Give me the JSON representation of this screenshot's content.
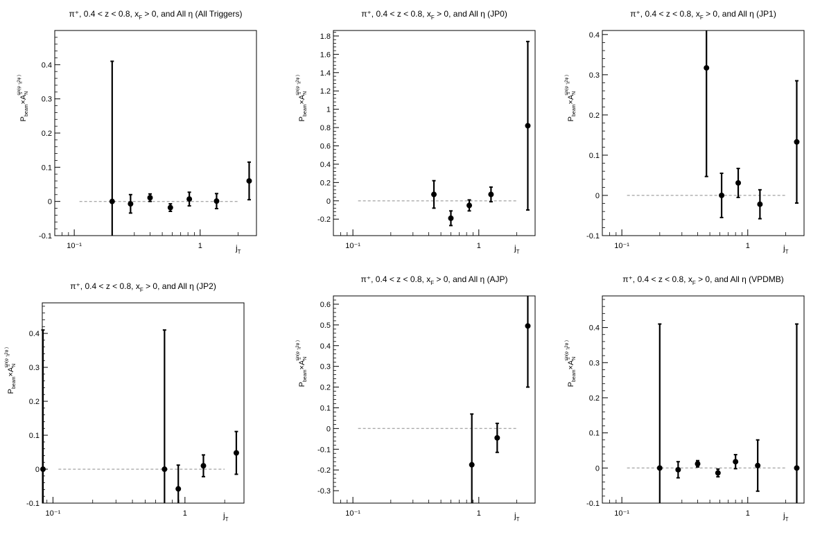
{
  "chart_data": [
    {
      "type": "scatter",
      "title": "π⁺, 0.4 < z < 0.8, x_F > 0, and All η (All Triggers)",
      "xlabel": "j_T",
      "ylabel": "P_beam × A_N^{sin(φ_S − 2φ_h)}",
      "xscale": "log",
      "xlim": [
        0.07,
        2.8
      ],
      "ylim": [
        -0.1,
        0.5
      ],
      "yticks": [
        -0.1,
        0,
        0.1,
        0.2,
        0.3,
        0.4
      ],
      "yticklabels": [
        "-0.1",
        "0",
        "0.1",
        "0.2",
        "0.3",
        "0.4"
      ],
      "xticks": [
        0.1,
        1
      ],
      "xticklabels": [
        "10⁻¹",
        "1"
      ],
      "reference_line": 0,
      "series": [
        {
          "x": [
            0.2,
            0.28,
            0.4,
            0.58,
            0.82,
            1.35,
            2.45
          ],
          "y": [
            0.0,
            -0.007,
            0.011,
            -0.018,
            0.007,
            0.001,
            0.06
          ],
          "yerr": [
            0.41,
            0.027,
            0.011,
            0.011,
            0.02,
            0.022,
            0.055
          ]
        }
      ]
    },
    {
      "type": "scatter",
      "title": "π⁺, 0.4 < z < 0.8, x_F > 0, and All η (JP0)",
      "xlabel": "j_T",
      "ylabel": "P_beam × A_N^{sin(φ_S − 2φ_h)}",
      "xscale": "log",
      "xlim": [
        0.07,
        2.8
      ],
      "ylim": [
        -0.38,
        1.86
      ],
      "yticks": [
        -0.2,
        0,
        0.2,
        0.4,
        0.6,
        0.8,
        1,
        1.2,
        1.4,
        1.6,
        1.8
      ],
      "yticklabels": [
        "-0.2",
        "0",
        "0.2",
        "0.4",
        "0.6",
        "0.8",
        "1",
        "1.2",
        "1.4",
        "1.6",
        "1.8"
      ],
      "xticks": [
        0.1,
        1
      ],
      "xticklabels": [
        "10⁻¹",
        "1"
      ],
      "reference_line": 0,
      "series": [
        {
          "x": [
            0.44,
            0.6,
            0.84,
            1.25,
            2.45
          ],
          "y": [
            0.07,
            -0.19,
            -0.05,
            0.07,
            0.82
          ],
          "yerr": [
            0.15,
            0.08,
            0.06,
            0.08,
            0.92
          ]
        }
      ]
    },
    {
      "type": "scatter",
      "title": "π⁺, 0.4 < z < 0.8, x_F > 0, and All η (JP1)",
      "xlabel": "j_T",
      "ylabel": "P_beam × A_N^{sin(φ_S − 2φ_h)}",
      "xscale": "log",
      "xlim": [
        0.07,
        2.8
      ],
      "ylim": [
        -0.1,
        0.41
      ],
      "yticks": [
        -0.1,
        0,
        0.1,
        0.2,
        0.3,
        0.4
      ],
      "yticklabels": [
        "-0.1",
        "0",
        "0.1",
        "0.2",
        "0.3",
        "0.4"
      ],
      "xticks": [
        0.1,
        1
      ],
      "xticklabels": [
        "10⁻¹",
        "1"
      ],
      "reference_line": 0,
      "series": [
        {
          "x": [
            0.47,
            0.62,
            0.84,
            1.25,
            2.45
          ],
          "y": [
            0.317,
            0.0,
            0.031,
            -0.022,
            0.133
          ],
          "yerr": [
            0.27,
            0.055,
            0.036,
            0.036,
            0.152
          ]
        }
      ]
    },
    {
      "type": "scatter",
      "title": "π⁺, 0.4 < z < 0.8, x_F > 0, and All η (JP2)",
      "xlabel": "j_T",
      "ylabel": "P_beam × A_N^{sin(φ_S − 2φ_h)}",
      "xscale": "log",
      "xlim": [
        0.083,
        2.8
      ],
      "ylim": [
        -0.1,
        0.49
      ],
      "yticks": [
        -0.1,
        0,
        0.1,
        0.2,
        0.3,
        0.4
      ],
      "yticklabels": [
        "-0.1",
        "0",
        "0.1",
        "0.2",
        "0.3",
        "0.4"
      ],
      "xticks": [
        0.1,
        1
      ],
      "xticklabels": [
        "10⁻¹",
        "1"
      ],
      "reference_line": 0,
      "series": [
        {
          "x": [
            0.084,
            0.7,
            0.89,
            1.38,
            2.45
          ],
          "y": [
            0.0,
            0.0,
            -0.058,
            0.01,
            0.048
          ],
          "yerr": [
            0.41,
            0.41,
            0.07,
            0.032,
            0.063
          ]
        }
      ]
    },
    {
      "type": "scatter",
      "title": "π⁺, 0.4 < z < 0.8, x_F > 0, and All η (AJP)",
      "xlabel": "j_T",
      "ylabel": "P_beam × A_N^{sin(φ_S − 2φ_h)}",
      "xscale": "log",
      "xlim": [
        0.07,
        2.8
      ],
      "ylim": [
        -0.36,
        0.64
      ],
      "yticks": [
        -0.3,
        -0.2,
        -0.1,
        0,
        0.1,
        0.2,
        0.3,
        0.4,
        0.5,
        0.6
      ],
      "yticklabels": [
        "-0.3",
        "-0.2",
        "-0.1",
        "0",
        "0.1",
        "0.2",
        "0.3",
        "0.4",
        "0.5",
        "0.6"
      ],
      "xticks": [
        0.1,
        1
      ],
      "xticklabels": [
        "10⁻¹",
        "1"
      ],
      "reference_line": 0,
      "series": [
        {
          "x": [
            0.88,
            1.4,
            2.45
          ],
          "y": [
            -0.175,
            -0.045,
            0.495
          ],
          "yerr": [
            0.245,
            0.07,
            0.295
          ]
        }
      ]
    },
    {
      "type": "scatter",
      "title": "π⁺, 0.4 < z < 0.8, x_F > 0, and All η (VPDMB)",
      "xlabel": "j_T",
      "ylabel": "P_beam × A_N^{sin(φ_S − 2φ_h)}",
      "xscale": "log",
      "xlim": [
        0.07,
        2.8
      ],
      "ylim": [
        -0.1,
        0.49
      ],
      "yticks": [
        -0.1,
        0,
        0.1,
        0.2,
        0.3,
        0.4
      ],
      "yticklabels": [
        "-0.1",
        "0",
        "0.1",
        "0.2",
        "0.3",
        "0.4"
      ],
      "xticks": [
        0.1,
        1
      ],
      "xticklabels": [
        "10⁻¹",
        "1"
      ],
      "reference_line": 0,
      "series": [
        {
          "x": [
            0.2,
            0.28,
            0.4,
            0.58,
            0.8,
            1.2,
            2.45
          ],
          "y": [
            0.0,
            -0.005,
            0.012,
            -0.014,
            0.018,
            0.007,
            0.0
          ],
          "yerr": [
            0.41,
            0.023,
            0.009,
            0.011,
            0.02,
            0.073,
            0.41
          ]
        }
      ]
    }
  ]
}
